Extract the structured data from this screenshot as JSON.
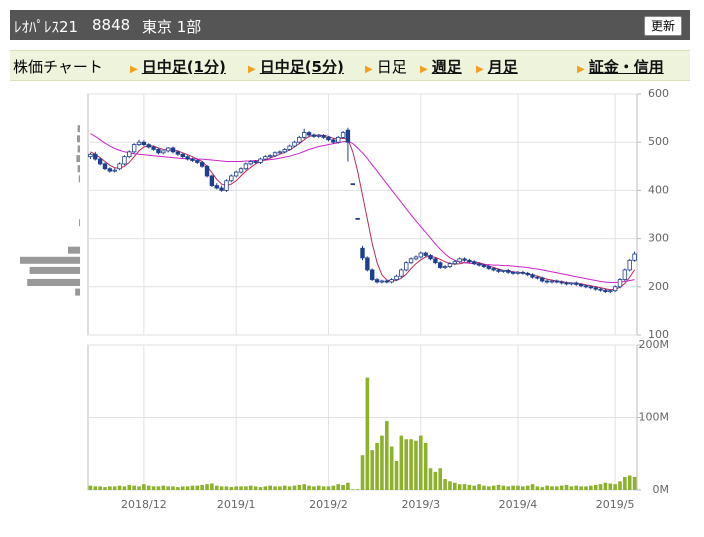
{
  "header": {
    "name": "ﾚｵﾊﾟﾚｽ21",
    "code": "8848",
    "market": "東京 1部",
    "button": "更新"
  },
  "nav": {
    "label": "株価チャート",
    "items": [
      "日中足(1分)",
      "日中足(5分)",
      "日足",
      "週足",
      "月足",
      "証金・信用"
    ],
    "current": "日足"
  },
  "chart_data": [
    {
      "type": "candlestick",
      "categories": [
        null,
        null,
        null,
        null,
        null,
        null,
        null,
        null,
        null,
        null,
        null,
        "2018/12",
        null,
        null,
        null,
        null,
        null,
        null,
        null,
        null,
        null,
        null,
        null,
        null,
        null,
        null,
        null,
        null,
        null,
        null,
        "2019/1",
        null,
        null,
        null,
        null,
        null,
        null,
        null,
        null,
        null,
        null,
        null,
        null,
        null,
        null,
        null,
        null,
        null,
        null,
        "2019/2",
        null,
        null,
        null,
        null,
        null,
        null,
        null,
        null,
        null,
        null,
        null,
        null,
        null,
        null,
        null,
        null,
        null,
        null,
        "2019/3",
        null,
        null,
        null,
        null,
        null,
        null,
        null,
        null,
        null,
        null,
        null,
        null,
        null,
        null,
        null,
        null,
        null,
        null,
        null,
        "2019/4",
        null,
        null,
        null,
        null,
        null,
        null,
        null,
        null,
        null,
        null,
        null,
        null,
        null,
        null,
        null,
        null,
        null,
        null,
        null,
        "2019/5",
        null,
        null,
        null,
        null
      ],
      "open": [
        470,
        475,
        465,
        455,
        445,
        440,
        445,
        455,
        470,
        480,
        495,
        500,
        495,
        490,
        485,
        478,
        482,
        488,
        480,
        475,
        470,
        465,
        462,
        458,
        450,
        430,
        410,
        405,
        400,
        420,
        430,
        438,
        445,
        455,
        460,
        458,
        465,
        470,
        472,
        478,
        480,
        485,
        492,
        500,
        510,
        520,
        515,
        512,
        514,
        510,
        505,
        500,
        510,
        525,
        414,
        342,
        280,
        260,
        235,
        215,
        210,
        212,
        210,
        215,
        222,
        235,
        250,
        258,
        262,
        270,
        265,
        258,
        250,
        240,
        242,
        248,
        252,
        258,
        255,
        252,
        248,
        245,
        242,
        238,
        235,
        232,
        234,
        230,
        228,
        230,
        228,
        225,
        220,
        218,
        212,
        210,
        212,
        210,
        208,
        206,
        208,
        205,
        202,
        200,
        198,
        195,
        193,
        190,
        192,
        200,
        215,
        235,
        255
      ],
      "high": [
        478,
        480,
        468,
        458,
        448,
        446,
        458,
        473,
        483,
        498,
        505,
        504,
        498,
        493,
        488,
        483,
        490,
        491,
        483,
        478,
        473,
        468,
        465,
        461,
        453,
        433,
        415,
        410,
        423,
        433,
        441,
        448,
        458,
        463,
        463,
        468,
        473,
        475,
        481,
        483,
        488,
        495,
        503,
        513,
        528,
        523,
        518,
        517,
        517,
        513,
        508,
        513,
        523,
        530,
        414,
        342,
        285,
        263,
        238,
        218,
        215,
        215,
        218,
        225,
        238,
        253,
        261,
        265,
        273,
        273,
        268,
        261,
        253,
        245,
        251,
        255,
        261,
        261,
        258,
        255,
        251,
        248,
        245,
        241,
        238,
        235,
        237,
        233,
        233,
        233,
        231,
        228,
        223,
        221,
        215,
        215,
        215,
        213,
        211,
        209,
        211,
        208,
        205,
        203,
        201,
        198,
        196,
        195,
        203,
        218,
        238,
        258,
        273
      ],
      "low": [
        465,
        462,
        452,
        442,
        437,
        437,
        442,
        452,
        467,
        477,
        492,
        492,
        487,
        482,
        475,
        475,
        479,
        477,
        472,
        467,
        462,
        459,
        455,
        447,
        427,
        407,
        402,
        397,
        397,
        417,
        427,
        435,
        442,
        452,
        455,
        455,
        462,
        467,
        469,
        475,
        477,
        482,
        489,
        497,
        507,
        510,
        509,
        509,
        507,
        502,
        497,
        497,
        507,
        460,
        414,
        342,
        255,
        232,
        212,
        207,
        207,
        207,
        207,
        212,
        219,
        232,
        247,
        255,
        259,
        262,
        255,
        247,
        237,
        237,
        239,
        245,
        249,
        252,
        249,
        245,
        242,
        239,
        235,
        232,
        229,
        229,
        227,
        225,
        225,
        225,
        222,
        217,
        215,
        209,
        207,
        207,
        207,
        205,
        203,
        203,
        202,
        199,
        197,
        195,
        192,
        190,
        187,
        187,
        189,
        197,
        212,
        232,
        252
      ],
      "close": [
        475,
        465,
        455,
        445,
        440,
        442,
        455,
        470,
        480,
        495,
        500,
        495,
        490,
        485,
        478,
        482,
        488,
        480,
        475,
        470,
        465,
        462,
        458,
        450,
        430,
        410,
        405,
        400,
        420,
        430,
        438,
        445,
        455,
        460,
        458,
        465,
        470,
        472,
        478,
        480,
        485,
        492,
        500,
        510,
        520,
        515,
        512,
        514,
        510,
        505,
        500,
        510,
        520,
        500,
        414,
        342,
        260,
        235,
        215,
        210,
        212,
        210,
        215,
        222,
        235,
        250,
        258,
        262,
        270,
        265,
        258,
        250,
        240,
        242,
        248,
        252,
        258,
        255,
        252,
        248,
        245,
        242,
        238,
        235,
        232,
        234,
        230,
        228,
        230,
        228,
        225,
        220,
        218,
        212,
        210,
        212,
        210,
        208,
        206,
        208,
        205,
        202,
        200,
        198,
        195,
        193,
        190,
        192,
        200,
        215,
        235,
        255,
        268
      ],
      "up_color": "#ffffff",
      "down_color": "#1f3f8f",
      "edge_color": "#1f3f8f",
      "series": [
        {
          "color": "#c0285a",
          "values": [
            480,
            475,
            468,
            460,
            452,
            447,
            446,
            450,
            458,
            470,
            482,
            490,
            493,
            492,
            488,
            485,
            484,
            484,
            482,
            478,
            474,
            470,
            465,
            460,
            450,
            437,
            423,
            413,
            410,
            413,
            420,
            430,
            440,
            448,
            455,
            460,
            463,
            467,
            471,
            475,
            479,
            484,
            490,
            497,
            505,
            512,
            514,
            515,
            514,
            512,
            508,
            507,
            508,
            506,
            480,
            440,
            390,
            340,
            290,
            250,
            225,
            214,
            212,
            213,
            218,
            226,
            238,
            248,
            256,
            262,
            263,
            261,
            257,
            252,
            248,
            247,
            248,
            250,
            252,
            252,
            250,
            247,
            243,
            240,
            237,
            234,
            233,
            231,
            230,
            229,
            227,
            225,
            222,
            219,
            216,
            214,
            212,
            211,
            209,
            208,
            207,
            206,
            204,
            202,
            200,
            198,
            196,
            194,
            195,
            199,
            207,
            220,
            235
          ]
        },
        {
          "color": "#cc22cc",
          "values": [
            518,
            512,
            505,
            498,
            492,
            487,
            483,
            480,
            478,
            476,
            475,
            474,
            473,
            472,
            471,
            470,
            469,
            468,
            467,
            466,
            466,
            466,
            465,
            465,
            464,
            463,
            462,
            461,
            460,
            460,
            460,
            460,
            461,
            461,
            462,
            462,
            463,
            464,
            465,
            467,
            469,
            471,
            474,
            477,
            481,
            485,
            488,
            491,
            493,
            495,
            497,
            499,
            501,
            502,
            497,
            488,
            478,
            466,
            453,
            440,
            427,
            414,
            401,
            388,
            375,
            362,
            349,
            337,
            325,
            313,
            301,
            289,
            278,
            268,
            260,
            255,
            252,
            250,
            249,
            248,
            247,
            246,
            246,
            245,
            245,
            244,
            244,
            243,
            242,
            241,
            240,
            238,
            237,
            235,
            233,
            231,
            229,
            227,
            225,
            223,
            221,
            219,
            217,
            215,
            213,
            211,
            210,
            209,
            209,
            210,
            211,
            213,
            215
          ]
        }
      ],
      "ylim": [
        100,
        600
      ],
      "yticks": [
        100,
        200,
        300,
        400,
        500,
        600
      ],
      "grid": true
    },
    {
      "type": "bar",
      "color": "#8cb12c",
      "values": [
        6,
        5,
        5,
        4,
        5,
        5,
        6,
        5,
        7,
        6,
        5,
        8,
        6,
        5,
        5,
        6,
        5,
        5,
        4,
        5,
        5,
        6,
        6,
        7,
        8,
        9,
        6,
        5,
        5,
        4,
        5,
        5,
        5,
        6,
        5,
        4,
        5,
        6,
        5,
        5,
        6,
        5,
        6,
        7,
        8,
        6,
        5,
        6,
        5,
        5,
        6,
        8,
        7,
        10,
        1,
        1,
        48,
        155,
        55,
        65,
        75,
        95,
        60,
        40,
        75,
        70,
        70,
        68,
        75,
        65,
        30,
        25,
        30,
        15,
        12,
        10,
        8,
        8,
        7,
        6,
        8,
        6,
        5,
        6,
        7,
        6,
        5,
        6,
        6,
        5,
        6,
        8,
        5,
        4,
        6,
        5,
        5,
        6,
        7,
        5,
        6,
        5,
        5,
        6,
        7,
        8,
        10,
        9,
        8,
        12,
        18,
        20,
        18
      ],
      "ylim": [
        0,
        200
      ],
      "yticks": [
        {
          "value": 0,
          "label": "0M"
        },
        {
          "value": 100,
          "label": "100M"
        },
        {
          "value": 200,
          "label": "200M"
        }
      ],
      "grid": true
    },
    {
      "type": "volume-profile",
      "color": "#999999",
      "levels": [
        528,
        507,
        486,
        466,
        445,
        424,
        333,
        276,
        255,
        234,
        209,
        189
      ],
      "values": [
        20,
        25,
        20,
        30,
        20,
        10,
        8,
        100,
        500,
        420,
        440,
        40
      ]
    }
  ]
}
